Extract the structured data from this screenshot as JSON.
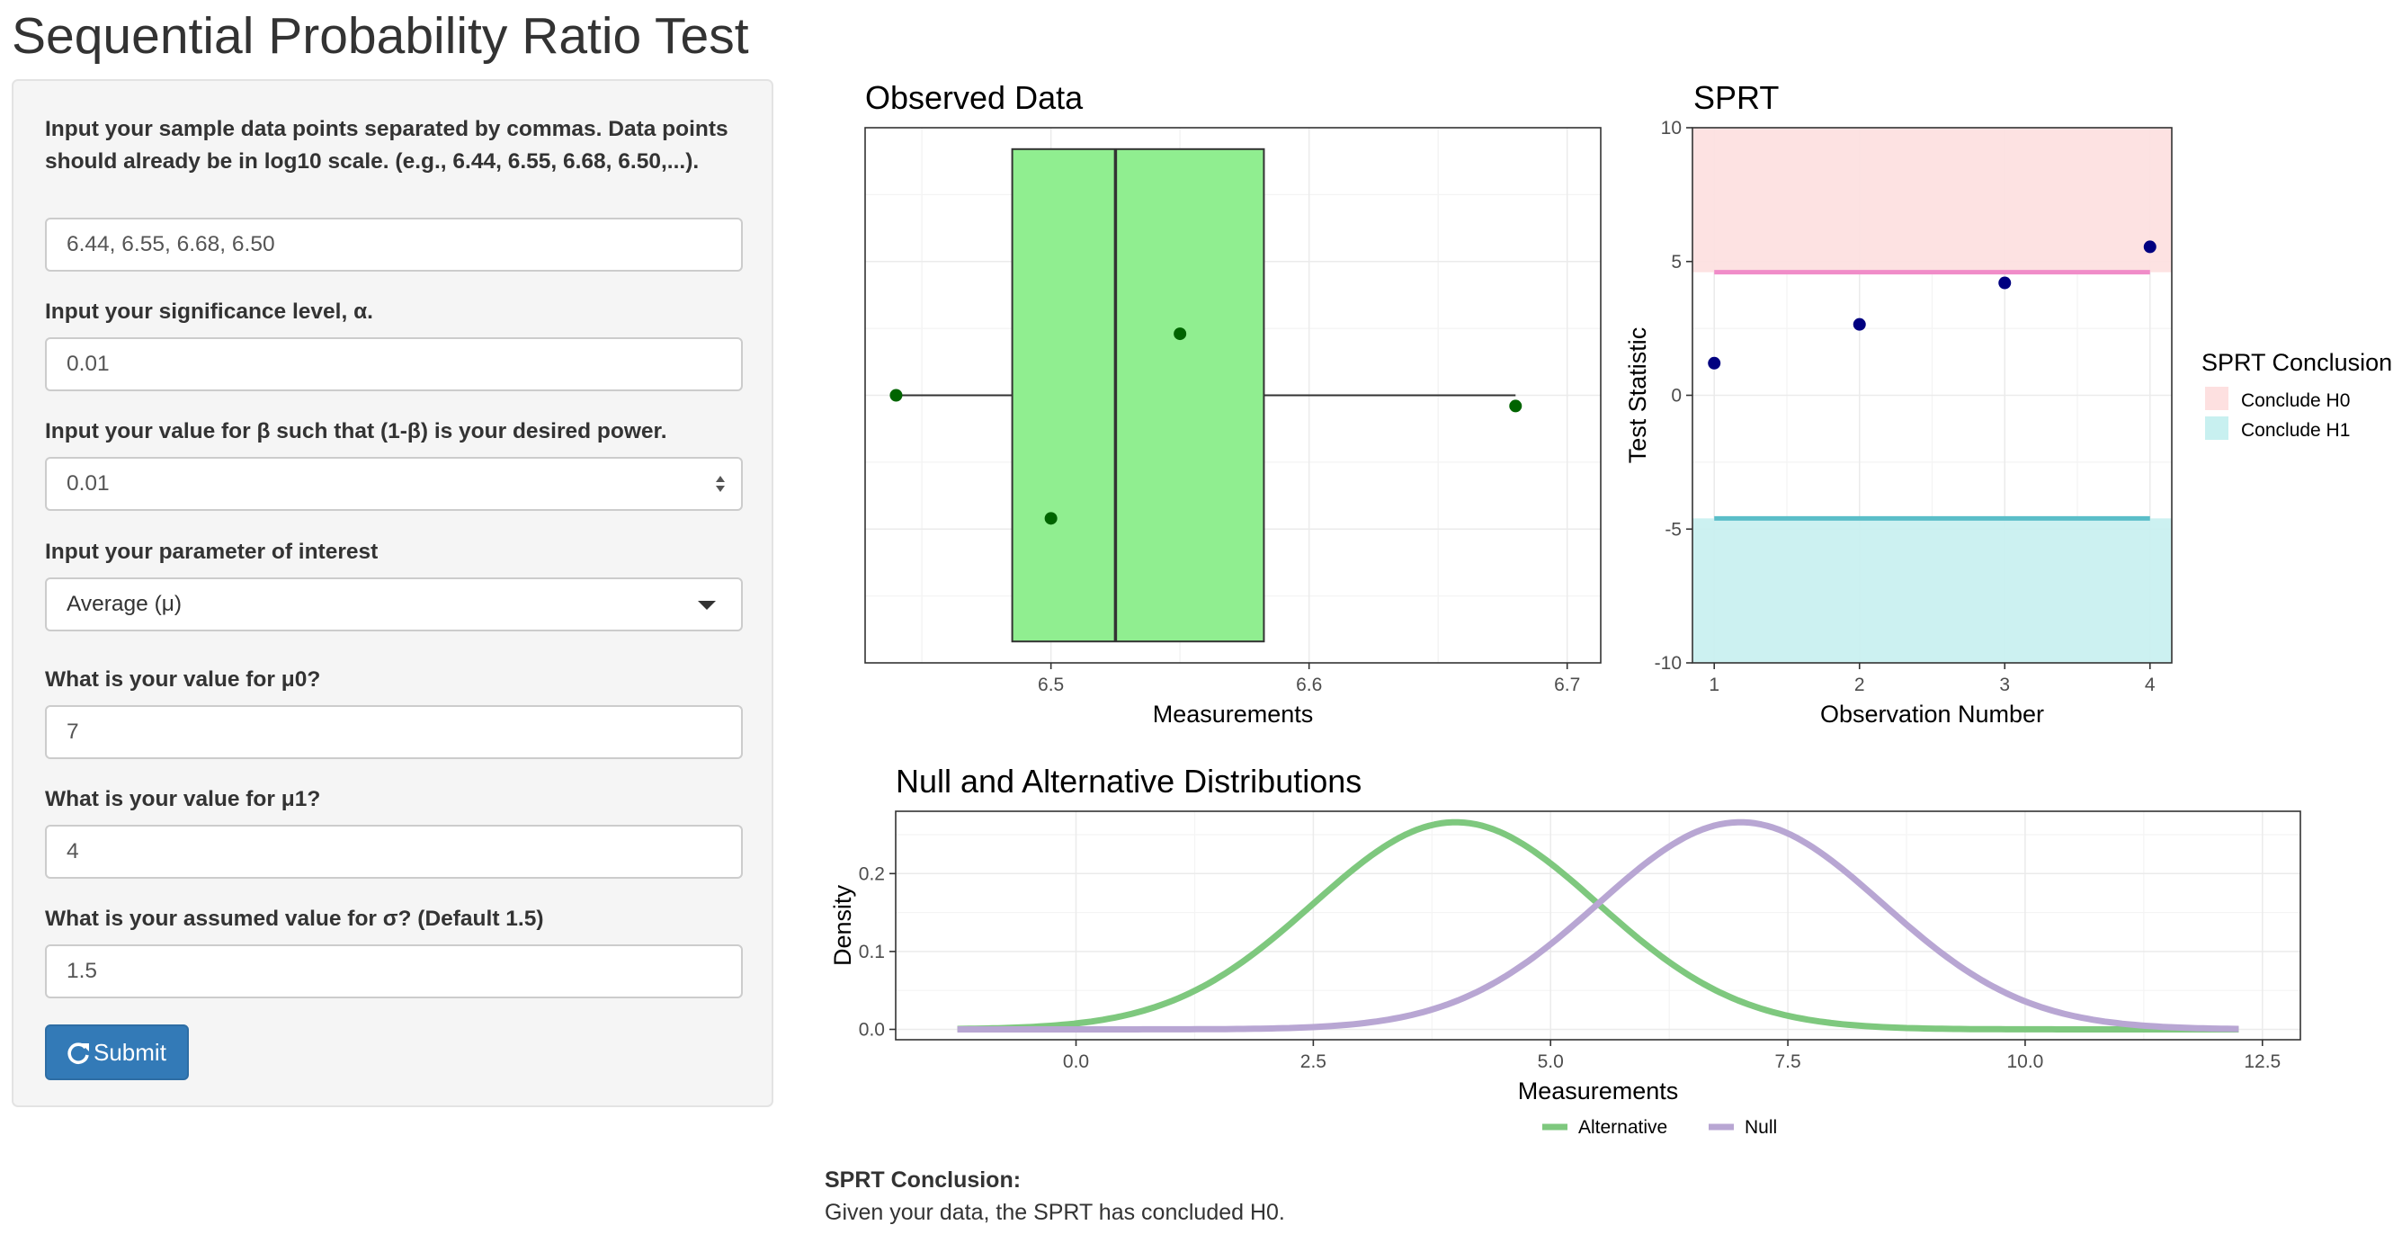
{
  "title": "Sequential Probability Ratio Test",
  "sidebar": {
    "data_label": "Input your sample data points separated by commas. Data points should already be in log10 scale. (e.g., 6.44, 6.55, 6.68, 6.50,...).",
    "data_value": "6.44, 6.55, 6.68, 6.50",
    "alpha_label": "Input your significance level, α.",
    "alpha_value": "0.01",
    "beta_label": "Input your value for β such that (1-β) is your desired power.",
    "beta_value": "0.01",
    "param_label": "Input your parameter of interest",
    "param_value": "Average (μ)",
    "mu0_label": "What is your value for μ0?",
    "mu0_value": "7",
    "mu1_label": "What is your value for μ1?",
    "mu1_value": "4",
    "sigma_label": "What is your assumed value for σ? (Default 1.5)",
    "sigma_value": "1.5",
    "submit_label": "Submit",
    "icons": [
      "spinner-updown-icon",
      "caret-down-icon",
      "refresh-icon"
    ]
  },
  "colors": {
    "box_fill": "#90ee90",
    "point": "#006400",
    "sprt_point": "#000080",
    "h0_band": "#fde0e0",
    "h1_band": "#c8f0f0",
    "h0_line": "#f08cc8",
    "h1_line": "#5abec8",
    "alternative": "#7ec87e",
    "null": "#b8a6d3",
    "primary": "#337ab7"
  },
  "chart_data": [
    {
      "type": "box",
      "title": "Observed Data",
      "xlabel": "Measurements",
      "ylabel": "",
      "x_ticks": [
        6.5,
        6.6,
        6.7
      ],
      "xlim": [
        6.428,
        6.713
      ],
      "box": {
        "min": 6.44,
        "q1": 6.485,
        "median": 6.525,
        "q3": 6.5825,
        "max": 6.68
      },
      "points": [
        {
          "x": 6.44,
          "jitter": 0.0
        },
        {
          "x": 6.55,
          "jitter": 0.23
        },
        {
          "x": 6.68,
          "jitter": -0.04
        },
        {
          "x": 6.5,
          "jitter": -0.46
        }
      ],
      "grid": true
    },
    {
      "type": "scatter",
      "title": "SPRT",
      "xlabel": "Observation Number",
      "ylabel": "Test Statistic",
      "x_ticks": [
        1,
        2,
        3,
        4
      ],
      "y_ticks": [
        -10,
        -5,
        0,
        5,
        10
      ],
      "xlim": [
        0.85,
        4.15
      ],
      "ylim": [
        -10,
        10
      ],
      "x": [
        1,
        2,
        3,
        4
      ],
      "y": [
        1.2,
        2.65,
        4.2,
        5.55
      ],
      "upper_boundary": 4.6,
      "lower_boundary": -4.6,
      "legend": {
        "title": "SPRT Conclusion",
        "entries": [
          "Conclude H0",
          "Conclude H1"
        ],
        "position": "right"
      },
      "grid": true
    },
    {
      "type": "line",
      "title": "Null and Alternative Distributions",
      "xlabel": "Measurements",
      "ylabel": "Density",
      "x_ticks": [
        "0.0",
        "2.5",
        "5.0",
        "7.5",
        "10.0",
        "12.5"
      ],
      "y_ticks": [
        "0.0",
        "0.1",
        "0.2"
      ],
      "xlim": [
        -1.9,
        12.9
      ],
      "ylim": [
        -0.0133,
        0.28
      ],
      "x_range": [
        -1.25,
        12.25
      ],
      "series": [
        {
          "name": "Alternative",
          "mean": 4,
          "sd": 1.5
        },
        {
          "name": "Null",
          "mean": 7,
          "sd": 1.5
        }
      ],
      "legend": {
        "position": "bottom"
      },
      "grid": true
    }
  ],
  "conclusion": {
    "heading": "SPRT Conclusion:",
    "text": "Given your data, the SPRT has concluded H0."
  }
}
